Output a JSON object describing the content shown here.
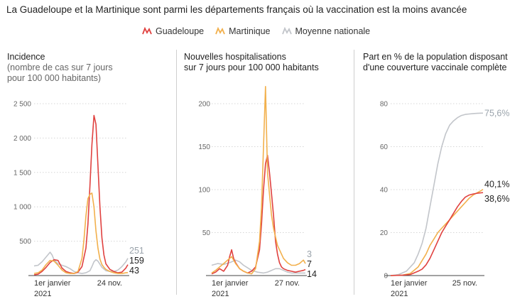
{
  "title": "La Guadeloupe et la Martinique sont parmi les départements français où la vaccination est la moins avancée",
  "legend": [
    {
      "label": "Guadeloupe",
      "color": "#e0413f",
      "icon": "zigzag-line-icon"
    },
    {
      "label": "Martinique",
      "color": "#f2b04c",
      "icon": "zigzag-line-icon"
    },
    {
      "label": "Moyenne nationale",
      "color": "#c2c5ca",
      "icon": "zigzag-line-icon"
    }
  ],
  "chart_data": [
    {
      "type": "line",
      "title": "Incidence",
      "subtitle_lines": [
        "(nombre de cas sur 7 jours",
        "pour 100 000 habitants)"
      ],
      "ylim": [
        0,
        2500
      ],
      "yticks": [
        0,
        500,
        1000,
        1500,
        2000,
        2500
      ],
      "ytick_labels": [
        "",
        "500",
        "1 000",
        "1 500",
        "2 000",
        "2 500"
      ],
      "xlim": [
        0,
        47
      ],
      "x_label_start": [
        "1er janvier",
        "2021"
      ],
      "x_label_end": "24 nov.",
      "grid": true,
      "series": [
        {
          "name": "Moyenne nationale",
          "color": "#c2c5ca",
          "end_label": "251",
          "x": [
            0,
            2,
            4,
            6,
            8,
            9,
            10,
            12,
            14,
            16,
            18,
            20,
            22,
            24,
            26,
            28,
            29,
            30,
            31,
            32,
            34,
            36,
            38,
            40,
            42,
            44,
            46,
            47
          ],
          "y": [
            140,
            150,
            200,
            270,
            340,
            300,
            230,
            170,
            150,
            130,
            100,
            60,
            40,
            30,
            40,
            70,
            130,
            200,
            230,
            210,
            120,
            70,
            60,
            60,
            80,
            130,
            200,
            251
          ]
        },
        {
          "name": "Guadeloupe",
          "color": "#e0413f",
          "end_label": "159",
          "x": [
            0,
            2,
            4,
            6,
            8,
            10,
            12,
            14,
            16,
            18,
            20,
            22,
            24,
            26,
            27,
            28,
            29,
            30,
            31,
            32,
            33,
            34,
            35,
            36,
            38,
            40,
            42,
            44,
            46,
            47
          ],
          "y": [
            10,
            20,
            60,
            120,
            190,
            230,
            220,
            110,
            60,
            40,
            30,
            50,
            130,
            400,
            750,
            1300,
            1900,
            2330,
            2200,
            1600,
            1000,
            550,
            300,
            170,
            90,
            60,
            40,
            50,
            110,
            159
          ]
        },
        {
          "name": "Martinique",
          "color": "#f2b04c",
          "end_label": "43",
          "x": [
            0,
            2,
            4,
            6,
            8,
            10,
            12,
            14,
            16,
            18,
            20,
            22,
            24,
            25,
            26,
            27,
            28,
            29,
            30,
            31,
            32,
            33,
            34,
            35,
            36,
            38,
            40,
            42,
            44,
            46,
            47
          ],
          "y": [
            30,
            40,
            80,
            160,
            220,
            210,
            150,
            80,
            40,
            30,
            30,
            60,
            250,
            520,
            870,
            1120,
            1180,
            1200,
            1000,
            650,
            400,
            240,
            160,
            120,
            90,
            60,
            40,
            30,
            30,
            40,
            43
          ]
        }
      ]
    },
    {
      "type": "line",
      "title_lines": [
        "Nouvelles hospitalisations",
        "sur 7 jours pour 100 000 habitants"
      ],
      "ylim": [
        0,
        200
      ],
      "yticks": [
        0,
        50,
        100,
        150,
        200
      ],
      "ytick_labels": [
        "",
        "50",
        "100",
        "150",
        "200"
      ],
      "xlim": [
        0,
        47
      ],
      "x_label_start": [
        "1er janvier",
        "2021"
      ],
      "x_label_end": "27 nov.",
      "grid": true,
      "series": [
        {
          "name": "Moyenne nationale",
          "color": "#c2c5ca",
          "end_label": "3",
          "x": [
            0,
            3,
            6,
            9,
            12,
            14,
            16,
            18,
            20,
            23,
            26,
            28,
            30,
            32,
            34,
            36,
            38,
            40,
            42,
            44,
            46,
            47
          ],
          "y": [
            12,
            14,
            13,
            15,
            18,
            16,
            12,
            9,
            6,
            4,
            3,
            4,
            6,
            8,
            8,
            6,
            4,
            3,
            3,
            3,
            3,
            3
          ]
        },
        {
          "name": "Guadeloupe",
          "color": "#e0413f",
          "end_label": "7",
          "x": [
            0,
            2,
            4,
            6,
            8,
            9,
            10,
            11,
            12,
            14,
            16,
            18,
            20,
            22,
            24,
            25,
            26,
            27,
            28,
            29,
            30,
            31,
            32,
            33,
            34,
            35,
            36,
            38,
            40,
            42,
            44,
            46,
            47
          ],
          "y": [
            2,
            4,
            8,
            5,
            12,
            22,
            30,
            20,
            15,
            8,
            5,
            3,
            5,
            10,
            30,
            60,
            100,
            130,
            140,
            120,
            95,
            70,
            40,
            25,
            15,
            10,
            8,
            6,
            5,
            4,
            5,
            6,
            7
          ]
        },
        {
          "name": "Martinique",
          "color": "#f2b04c",
          "end_label": "14",
          "x": [
            0,
            2,
            4,
            6,
            8,
            10,
            12,
            14,
            16,
            18,
            20,
            22,
            24,
            25,
            26,
            27,
            28,
            29,
            30,
            31,
            32,
            33,
            34,
            36,
            38,
            40,
            42,
            44,
            46,
            47
          ],
          "y": [
            3,
            6,
            10,
            14,
            18,
            22,
            14,
            8,
            5,
            3,
            2,
            8,
            40,
            80,
            150,
            220,
            120,
            95,
            70,
            55,
            45,
            35,
            30,
            20,
            15,
            12,
            12,
            14,
            18,
            14
          ]
        }
      ]
    },
    {
      "type": "line",
      "title_lines": [
        "Part en % de la population disposant",
        "d'une couverture vaccinale complète"
      ],
      "ylim": [
        0,
        80
      ],
      "yticks": [
        0,
        20,
        40,
        60,
        80
      ],
      "ytick_labels": [
        "0",
        "20",
        "40",
        "60",
        "80"
      ],
      "xlim": [
        0,
        47
      ],
      "x_label_start": [
        "1er janvier",
        "2021"
      ],
      "x_label_end": "25 nov.",
      "grid": true,
      "series": [
        {
          "name": "Moyenne nationale",
          "color": "#c2c5ca",
          "end_label": "75,6%",
          "x": [
            0,
            4,
            8,
            10,
            12,
            14,
            16,
            18,
            20,
            22,
            24,
            26,
            28,
            30,
            32,
            34,
            36,
            38,
            40,
            42,
            44,
            46,
            47
          ],
          "y": [
            0,
            0.5,
            2,
            4,
            6,
            10,
            15,
            22,
            32,
            42,
            52,
            60,
            66,
            70,
            72,
            73.5,
            74.5,
            75,
            75.2,
            75.4,
            75.5,
            75.6,
            75.6
          ]
        },
        {
          "name": "Martinique",
          "color": "#f2b04c",
          "end_label": "40,1%",
          "x": [
            0,
            6,
            10,
            14,
            16,
            18,
            20,
            22,
            24,
            26,
            28,
            30,
            32,
            34,
            36,
            38,
            40,
            42,
            44,
            46,
            47
          ],
          "y": [
            0,
            0.2,
            1,
            4,
            7,
            10,
            14,
            17,
            20,
            22,
            24,
            26,
            28,
            30,
            32,
            34,
            36,
            37.5,
            38.5,
            39.5,
            40.1
          ]
        },
        {
          "name": "Guadeloupe",
          "color": "#e0413f",
          "end_label": "38,6%",
          "x": [
            0,
            6,
            10,
            14,
            16,
            18,
            20,
            22,
            24,
            26,
            28,
            30,
            32,
            34,
            36,
            38,
            40,
            42,
            44,
            46,
            47
          ],
          "y": [
            0,
            0.2,
            0.5,
            2,
            3,
            5,
            8,
            12,
            16,
            20,
            23,
            26,
            29,
            32,
            34.5,
            36.5,
            37.5,
            38,
            38.3,
            38.5,
            38.6
          ]
        }
      ]
    }
  ]
}
